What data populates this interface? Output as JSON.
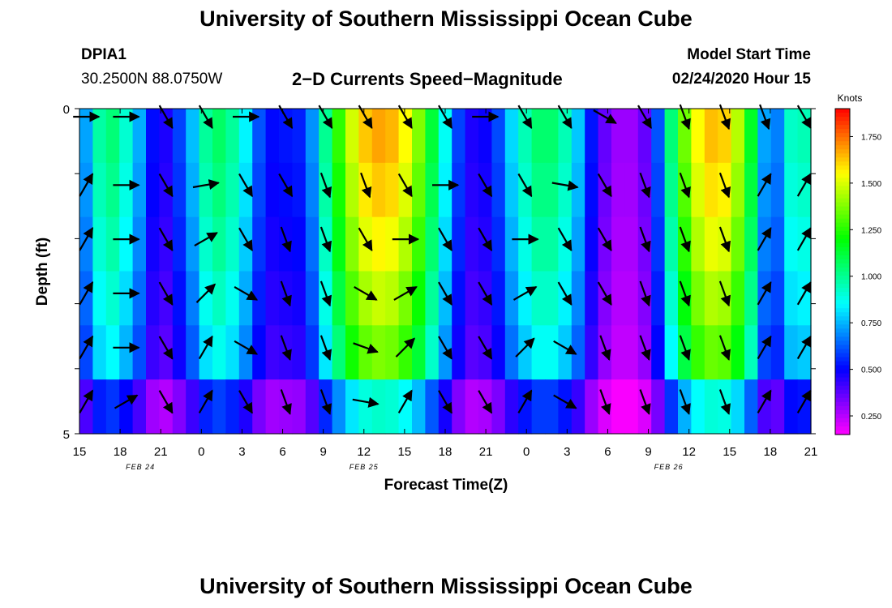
{
  "header": {
    "title_top": "University of Southern Mississippi Ocean Cube",
    "title_bottom": "University of Southern Mississippi Ocean Cube",
    "station_id": "DPIA1",
    "coordinates": "30.2500N 88.0750W",
    "plot_title": "2−D Currents Speed−Magnitude",
    "model_start_label": "Model Start Time",
    "model_start_value": "02/24/2020 Hour 15"
  },
  "chart_data": {
    "type": "heatmap",
    "title": "2-D Currents Speed-Magnitude",
    "xlabel": "Forecast Time(Z)",
    "ylabel": "Depth (ft)",
    "x_tick_labels": [
      "15",
      "18",
      "21",
      "0",
      "3",
      "6",
      "9",
      "12",
      "15",
      "18",
      "21",
      "0",
      "3",
      "6",
      "9",
      "12",
      "15",
      "18",
      "21"
    ],
    "date_labels": [
      {
        "text": "FEB 24",
        "tick_index": 1.5
      },
      {
        "text": "FEB 25",
        "tick_index": 7
      },
      {
        "text": "FEB 26",
        "tick_index": 14.5
      }
    ],
    "y_tick_labels": [
      "0",
      "5"
    ],
    "ylim": [
      0,
      5
    ],
    "hours": 55,
    "depth_layers": 5,
    "colorbar": {
      "unit": "Knots",
      "range": [
        0.15,
        1.9
      ],
      "ticks": [
        "1.750",
        "1.500",
        "1.250",
        "1.000",
        "0.750",
        "0.500",
        "0.250"
      ],
      "tick_values": [
        1.75,
        1.5,
        1.25,
        1.0,
        0.75,
        0.5,
        0.25
      ]
    },
    "speed_keyframes": [
      {
        "h": 0,
        "v": 0.6
      },
      {
        "h": 2,
        "v": 1.1
      },
      {
        "h": 4,
        "v": 0.85
      },
      {
        "h": 6,
        "v": 0.4
      },
      {
        "h": 8,
        "v": 0.65
      },
      {
        "h": 10,
        "v": 1.1
      },
      {
        "h": 12,
        "v": 0.95
      },
      {
        "h": 14,
        "v": 0.5
      },
      {
        "h": 17,
        "v": 0.55
      },
      {
        "h": 19,
        "v": 1.15
      },
      {
        "h": 21,
        "v": 1.6
      },
      {
        "h": 23,
        "v": 1.7
      },
      {
        "h": 25,
        "v": 1.5
      },
      {
        "h": 27,
        "v": 1.0
      },
      {
        "h": 29,
        "v": 0.45
      },
      {
        "h": 31,
        "v": 0.5
      },
      {
        "h": 33,
        "v": 0.9
      },
      {
        "h": 35,
        "v": 1.1
      },
      {
        "h": 37,
        "v": 0.9
      },
      {
        "h": 39,
        "v": 0.4
      },
      {
        "h": 41,
        "v": 0.25
      },
      {
        "h": 43,
        "v": 0.4
      },
      {
        "h": 45,
        "v": 1.25
      },
      {
        "h": 47,
        "v": 1.65
      },
      {
        "h": 49,
        "v": 1.6
      },
      {
        "h": 51,
        "v": 1.0
      },
      {
        "h": 52,
        "v": 0.45
      },
      {
        "h": 53,
        "v": 0.9
      },
      {
        "h": 54,
        "v": 0.95
      }
    ],
    "depth_factors": [
      1.0,
      0.97,
      0.93,
      0.88,
      0.82,
      0.55
    ],
    "arrow_hours": [
      0,
      3,
      6,
      9,
      12,
      15,
      18,
      21,
      24,
      27,
      30,
      33,
      36,
      39,
      42,
      45,
      48,
      51,
      54
    ],
    "arrow_directions_deg": [
      [
        90,
        90,
        150,
        150,
        90,
        150,
        150,
        150,
        150,
        150,
        90,
        150,
        150,
        120,
        150,
        160,
        160,
        160,
        150
      ],
      [
        30,
        90,
        150,
        80,
        150,
        150,
        160,
        160,
        150,
        90,
        150,
        150,
        100,
        150,
        160,
        160,
        160,
        30,
        30
      ],
      [
        30,
        90,
        150,
        60,
        150,
        160,
        160,
        150,
        90,
        150,
        150,
        90,
        150,
        150,
        160,
        160,
        160,
        30,
        30
      ],
      [
        30,
        90,
        150,
        45,
        120,
        160,
        160,
        120,
        60,
        150,
        150,
        60,
        150,
        150,
        160,
        160,
        160,
        30,
        30
      ],
      [
        30,
        90,
        150,
        30,
        120,
        160,
        160,
        110,
        45,
        150,
        150,
        45,
        120,
        160,
        160,
        160,
        160,
        30,
        30
      ],
      [
        30,
        60,
        150,
        30,
        150,
        160,
        160,
        100,
        30,
        150,
        150,
        30,
        120,
        160,
        160,
        160,
        160,
        30,
        30
      ]
    ]
  }
}
